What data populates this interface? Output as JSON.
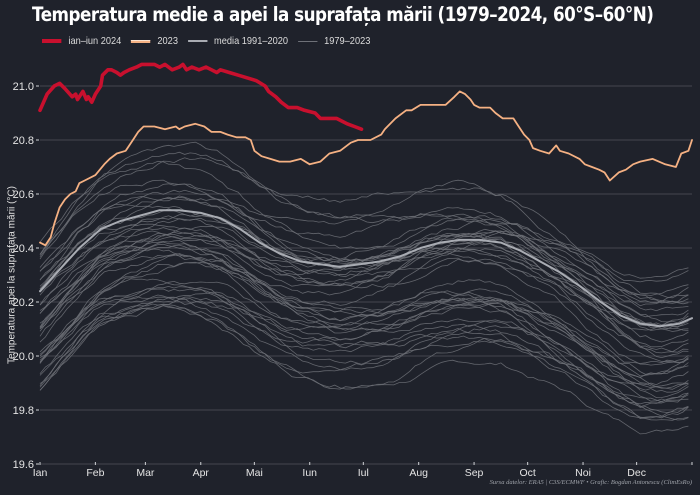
{
  "chart_data": {
    "type": "line",
    "title": "Temperatura medie a apei la suprafața mării (1979–2024, 60°S–60°N)",
    "xlabel": "",
    "ylabel": "Temperatura apei la suprafața mării (°C)",
    "ylim": [
      19.6,
      21.1
    ],
    "xlim_days": [
      0,
      365
    ],
    "yticks": [
      "19.6",
      "19.8",
      "20.0",
      "20.2",
      "20.4",
      "20.6",
      "20.8",
      "21.0"
    ],
    "ytick_values": [
      19.6,
      19.8,
      20.0,
      20.2,
      20.4,
      20.6,
      20.8,
      21.0
    ],
    "xticks": [
      {
        "label": "Ian",
        "day": 0
      },
      {
        "label": "Feb",
        "day": 31
      },
      {
        "label": "Mar",
        "day": 59
      },
      {
        "label": "Apr",
        "day": 90
      },
      {
        "label": "Mai",
        "day": 120
      },
      {
        "label": "Iun",
        "day": 151
      },
      {
        "label": "Iul",
        "day": 181
      },
      {
        "label": "Aug",
        "day": 212
      },
      {
        "label": "Sep",
        "day": 243
      },
      {
        "label": "Oct",
        "day": 273
      },
      {
        "label": "Noi",
        "day": 304
      },
      {
        "label": "Dec",
        "day": 334
      }
    ],
    "grid": true,
    "legend_position": "top-left",
    "legend": [
      {
        "label": "ian–iun 2024",
        "color": "#c8102e",
        "width": "thick"
      },
      {
        "label": "2023",
        "color": "#f5b183",
        "width": "medium"
      },
      {
        "label": "media 1991–2020",
        "color": "#a9acb3",
        "width": "medium"
      },
      {
        "label": "1979–2023",
        "color": "#6e7178",
        "width": "thin"
      }
    ],
    "series": [
      {
        "name": "ian–iun 2024",
        "color": "#c8102e",
        "days": [
          0,
          4,
          8,
          11,
          14,
          18,
          20,
          21,
          24,
          26,
          27,
          29,
          31,
          34,
          35,
          38,
          40,
          43,
          45,
          47,
          50,
          54,
          57,
          61,
          64,
          67,
          70,
          74,
          78,
          80,
          82,
          85,
          89,
          93,
          96,
          99,
          101,
          106,
          111,
          121,
          126,
          128,
          132,
          135,
          139,
          144,
          148,
          154,
          157,
          162,
          166,
          169,
          172,
          176,
          180
        ],
        "values": [
          20.91,
          20.97,
          21.0,
          21.01,
          20.99,
          20.96,
          20.97,
          20.95,
          20.98,
          20.95,
          20.96,
          20.94,
          20.97,
          21.0,
          21.04,
          21.06,
          21.06,
          21.05,
          21.04,
          21.05,
          21.06,
          21.07,
          21.08,
          21.08,
          21.08,
          21.07,
          21.08,
          21.06,
          21.07,
          21.08,
          21.06,
          21.07,
          21.06,
          21.07,
          21.06,
          21.05,
          21.06,
          21.05,
          21.04,
          21.02,
          21.0,
          20.98,
          20.96,
          20.94,
          20.92,
          20.92,
          20.91,
          20.9,
          20.88,
          20.88,
          20.88,
          20.87,
          20.86,
          20.85,
          20.84
        ]
      },
      {
        "name": "2023",
        "color": "#f5b183",
        "days": [
          0,
          3,
          6,
          8,
          11,
          14,
          17,
          20,
          22,
          25,
          31,
          36,
          39,
          43,
          48,
          52,
          55,
          58,
          61,
          64,
          70,
          76,
          78,
          81,
          87,
          92,
          96,
          101,
          105,
          110,
          115,
          118,
          120,
          124,
          129,
          134,
          140,
          146,
          151,
          157,
          162,
          168,
          174,
          178,
          181,
          185,
          191,
          193,
          199,
          205,
          208,
          213,
          218,
          222,
          227,
          232,
          235,
          238,
          241,
          243,
          246,
          252,
          255,
          259,
          265,
          268,
          271,
          274,
          276,
          280,
          285,
          289,
          291,
          296,
          302,
          305,
          309,
          313,
          316,
          319,
          324,
          328,
          332,
          336,
          343,
          350,
          356,
          359,
          363,
          365
        ],
        "values": [
          20.42,
          20.41,
          20.44,
          20.49,
          20.55,
          20.58,
          20.6,
          20.61,
          20.64,
          20.65,
          20.67,
          20.71,
          20.73,
          20.75,
          20.76,
          20.8,
          20.83,
          20.85,
          20.85,
          20.85,
          20.84,
          20.85,
          20.84,
          20.85,
          20.86,
          20.85,
          20.83,
          20.83,
          20.82,
          20.81,
          20.81,
          20.8,
          20.76,
          20.74,
          20.73,
          20.72,
          20.72,
          20.73,
          20.71,
          20.72,
          20.75,
          20.76,
          20.79,
          20.8,
          20.8,
          20.8,
          20.82,
          20.84,
          20.88,
          20.91,
          20.91,
          20.93,
          20.93,
          20.93,
          20.93,
          20.96,
          20.98,
          20.97,
          20.95,
          20.93,
          20.92,
          20.92,
          20.9,
          20.88,
          20.88,
          20.85,
          20.82,
          20.8,
          20.77,
          20.76,
          20.75,
          20.78,
          20.76,
          20.75,
          20.73,
          20.71,
          20.7,
          20.69,
          20.68,
          20.65,
          20.68,
          20.69,
          20.71,
          20.72,
          20.73,
          20.71,
          20.7,
          20.75,
          20.76,
          20.8,
          20.81,
          20.85,
          20.88
        ]
      },
      {
        "name": "media 1991–2020",
        "color": "#a9acb3",
        "days": [
          0,
          11,
          22,
          34,
          45,
          56,
          67,
          78,
          90,
          101,
          112,
          123,
          134,
          146,
          157,
          168,
          179,
          190,
          202,
          213,
          224,
          235,
          246,
          258,
          269,
          280,
          291,
          302,
          314,
          325,
          336,
          347,
          358,
          365
        ],
        "values": [
          20.24,
          20.32,
          20.4,
          20.47,
          20.5,
          20.52,
          20.54,
          20.54,
          20.53,
          20.51,
          20.47,
          20.42,
          20.38,
          20.35,
          20.34,
          20.33,
          20.34,
          20.35,
          20.37,
          20.4,
          20.42,
          20.43,
          20.43,
          20.42,
          20.39,
          20.35,
          20.31,
          20.26,
          20.2,
          20.15,
          20.12,
          20.11,
          20.12,
          20.14
        ]
      }
    ],
    "background_years": {
      "name": "1979–2023",
      "color": "#6e7178",
      "years": [
        1979,
        1980,
        1981,
        1982,
        1983,
        1984,
        1985,
        1986,
        1987,
        1988,
        1989,
        1990,
        1991,
        1992,
        1993,
        1994,
        1995,
        1996,
        1997,
        1998,
        1999,
        2000,
        2001,
        2002,
        2003,
        2004,
        2005,
        2006,
        2007,
        2008,
        2009,
        2010,
        2011,
        2012,
        2013,
        2014,
        2015,
        2016,
        2017,
        2018,
        2019,
        2020,
        2021,
        2022
      ],
      "anomaly_vs_mean": [
        -0.36,
        -0.3,
        -0.33,
        -0.32,
        -0.22,
        -0.36,
        -0.4,
        -0.34,
        -0.2,
        -0.24,
        -0.32,
        -0.22,
        -0.22,
        -0.3,
        -0.26,
        -0.2,
        -0.16,
        -0.22,
        -0.04,
        -0.02,
        -0.18,
        -0.16,
        -0.08,
        -0.04,
        -0.02,
        -0.04,
        0.0,
        -0.02,
        -0.1,
        -0.1,
        0.02,
        0.04,
        -0.08,
        -0.02,
        0.0,
        0.06,
        0.14,
        0.18,
        0.1,
        0.06,
        0.12,
        0.14,
        0.06,
        0.04
      ]
    }
  },
  "caption": "Sursa datelor: ERA5 | C3S/ECMWF • Grafic: Bogdan Antonescu (ClimEsRo)"
}
